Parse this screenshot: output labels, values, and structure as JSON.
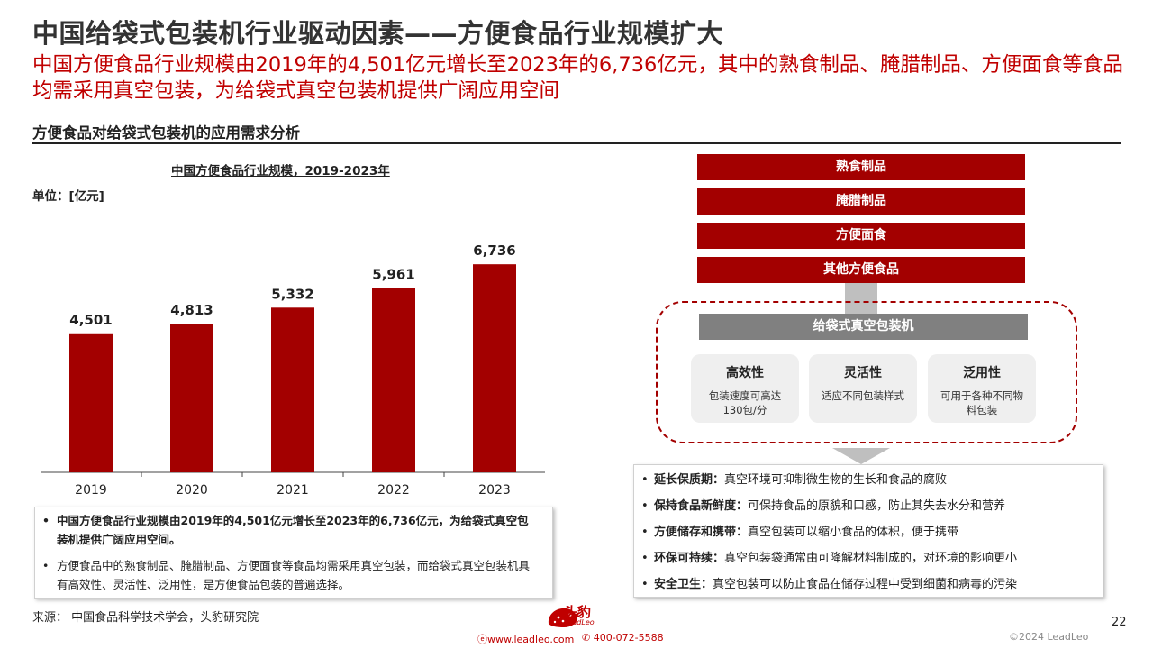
{
  "header": {
    "title": "中国给袋式包装机行业驱动因素——方便食品行业规模扩大",
    "subtitle": "中国方便食品行业规模由2019年的4,501亿元增长至2023年的6,736亿元，其中的熟食制品、腌腊制品、方便面食等食品均需采用真空包装，为给袋式真空包装机提供广阔应用空间"
  },
  "section": {
    "title": "方便食品对给袋式包装机的应用需求分析"
  },
  "chart_data": {
    "type": "bar",
    "title": "中国方便食品行业规模，2019-2023年",
    "unit": "单位：[亿元]",
    "categories": [
      "2019",
      "2020",
      "2021",
      "2022",
      "2023"
    ],
    "values": [
      4501,
      4813,
      5332,
      5961,
      6736
    ],
    "value_labels": [
      "4,501",
      "4,813",
      "5,332",
      "5,961",
      "6,736"
    ],
    "ylim": [
      0,
      7500
    ],
    "color": "#a30000",
    "grid": false
  },
  "notes": [
    "中国方便食品行业规模由2019年的4,501亿元增长至2023年的6,736亿元，为给袋式真空包装机提供广阔应用空间。",
    "方便食品中的熟食制品、腌腊制品、方便面食等食品均需采用真空包装，而给袋式真空包装机具有高效性、灵活性、泛用性，是方便食品包装的普遍选择。"
  ],
  "bullet": "•",
  "source": "来源：  中国食品科学技术学会，头豹研究院",
  "diagram": {
    "categories": [
      "熟食制品",
      "腌腊制品",
      "方便面食",
      "其他方便食品"
    ],
    "machine": "给袋式真空包装机",
    "features": [
      {
        "title": "高效性",
        "desc": "包装速度可高达130包/分"
      },
      {
        "title": "灵活性",
        "desc": "适应不同包装样式"
      },
      {
        "title": "泛用性",
        "desc": "可用于各种不同物料包装"
      }
    ],
    "benefits": [
      {
        "label": "延长保质期：",
        "text": "真空环境可抑制微生物的生长和食品的腐败"
      },
      {
        "label": "保持食品新鲜度：",
        "text": "可保持食品的原貌和口感，防止其失去水分和营养"
      },
      {
        "label": "方便储存和携带：",
        "text": "真空包装可以缩小食品的体积，便于携带"
      },
      {
        "label": "环保可持续：",
        "text": "真空包装袋通常由可降解材料制成的，对环境的影响更小"
      },
      {
        "label": "安全卫生：",
        "text": "真空包装可以防止食品在储存过程中受到细菌和病毒的污染"
      }
    ]
  },
  "footer": {
    "logo_text": "头豹",
    "logo_sub": "LeadLeo",
    "website": "www.leadleo.com",
    "phone": "400-072-5588",
    "page": "22",
    "copyright": "©2024 LeadLeo"
  },
  "colors": {
    "brand_red": "#a30000",
    "title_red": "#c00000",
    "gray": "#808080"
  }
}
